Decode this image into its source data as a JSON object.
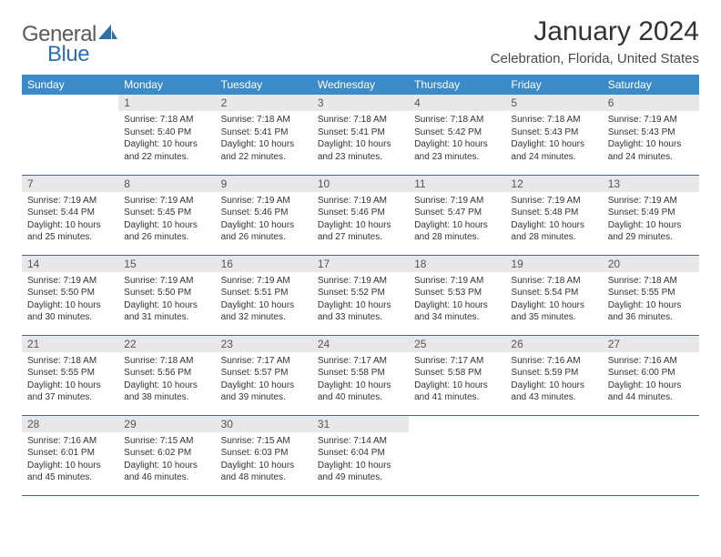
{
  "logo": {
    "part1": "General",
    "part2": "Blue"
  },
  "title": "January 2024",
  "location": "Celebration, Florida, United States",
  "colors": {
    "header_bg": "#3b8bc9",
    "header_text": "#ffffff",
    "daynum_bg": "#e8e8e8",
    "daynum_text": "#555555",
    "border": "#2f6fab",
    "body_text": "#333333",
    "logo_gray": "#5a5a5a",
    "logo_blue": "#2f6fab"
  },
  "fonts": {
    "title_size_pt": 22,
    "location_size_pt": 11,
    "weekday_size_pt": 9,
    "daynum_size_pt": 9,
    "body_size_pt": 7.5
  },
  "weekdays": [
    "Sunday",
    "Monday",
    "Tuesday",
    "Wednesday",
    "Thursday",
    "Friday",
    "Saturday"
  ],
  "weeks": [
    [
      null,
      {
        "n": "1",
        "sr": "7:18 AM",
        "ss": "5:40 PM",
        "dl": "10 hours and 22 minutes."
      },
      {
        "n": "2",
        "sr": "7:18 AM",
        "ss": "5:41 PM",
        "dl": "10 hours and 22 minutes."
      },
      {
        "n": "3",
        "sr": "7:18 AM",
        "ss": "5:41 PM",
        "dl": "10 hours and 23 minutes."
      },
      {
        "n": "4",
        "sr": "7:18 AM",
        "ss": "5:42 PM",
        "dl": "10 hours and 23 minutes."
      },
      {
        "n": "5",
        "sr": "7:18 AM",
        "ss": "5:43 PM",
        "dl": "10 hours and 24 minutes."
      },
      {
        "n": "6",
        "sr": "7:19 AM",
        "ss": "5:43 PM",
        "dl": "10 hours and 24 minutes."
      }
    ],
    [
      {
        "n": "7",
        "sr": "7:19 AM",
        "ss": "5:44 PM",
        "dl": "10 hours and 25 minutes."
      },
      {
        "n": "8",
        "sr": "7:19 AM",
        "ss": "5:45 PM",
        "dl": "10 hours and 26 minutes."
      },
      {
        "n": "9",
        "sr": "7:19 AM",
        "ss": "5:46 PM",
        "dl": "10 hours and 26 minutes."
      },
      {
        "n": "10",
        "sr": "7:19 AM",
        "ss": "5:46 PM",
        "dl": "10 hours and 27 minutes."
      },
      {
        "n": "11",
        "sr": "7:19 AM",
        "ss": "5:47 PM",
        "dl": "10 hours and 28 minutes."
      },
      {
        "n": "12",
        "sr": "7:19 AM",
        "ss": "5:48 PM",
        "dl": "10 hours and 28 minutes."
      },
      {
        "n": "13",
        "sr": "7:19 AM",
        "ss": "5:49 PM",
        "dl": "10 hours and 29 minutes."
      }
    ],
    [
      {
        "n": "14",
        "sr": "7:19 AM",
        "ss": "5:50 PM",
        "dl": "10 hours and 30 minutes."
      },
      {
        "n": "15",
        "sr": "7:19 AM",
        "ss": "5:50 PM",
        "dl": "10 hours and 31 minutes."
      },
      {
        "n": "16",
        "sr": "7:19 AM",
        "ss": "5:51 PM",
        "dl": "10 hours and 32 minutes."
      },
      {
        "n": "17",
        "sr": "7:19 AM",
        "ss": "5:52 PM",
        "dl": "10 hours and 33 minutes."
      },
      {
        "n": "18",
        "sr": "7:19 AM",
        "ss": "5:53 PM",
        "dl": "10 hours and 34 minutes."
      },
      {
        "n": "19",
        "sr": "7:18 AM",
        "ss": "5:54 PM",
        "dl": "10 hours and 35 minutes."
      },
      {
        "n": "20",
        "sr": "7:18 AM",
        "ss": "5:55 PM",
        "dl": "10 hours and 36 minutes."
      }
    ],
    [
      {
        "n": "21",
        "sr": "7:18 AM",
        "ss": "5:55 PM",
        "dl": "10 hours and 37 minutes."
      },
      {
        "n": "22",
        "sr": "7:18 AM",
        "ss": "5:56 PM",
        "dl": "10 hours and 38 minutes."
      },
      {
        "n": "23",
        "sr": "7:17 AM",
        "ss": "5:57 PM",
        "dl": "10 hours and 39 minutes."
      },
      {
        "n": "24",
        "sr": "7:17 AM",
        "ss": "5:58 PM",
        "dl": "10 hours and 40 minutes."
      },
      {
        "n": "25",
        "sr": "7:17 AM",
        "ss": "5:58 PM",
        "dl": "10 hours and 41 minutes."
      },
      {
        "n": "26",
        "sr": "7:16 AM",
        "ss": "5:59 PM",
        "dl": "10 hours and 43 minutes."
      },
      {
        "n": "27",
        "sr": "7:16 AM",
        "ss": "6:00 PM",
        "dl": "10 hours and 44 minutes."
      }
    ],
    [
      {
        "n": "28",
        "sr": "7:16 AM",
        "ss": "6:01 PM",
        "dl": "10 hours and 45 minutes."
      },
      {
        "n": "29",
        "sr": "7:15 AM",
        "ss": "6:02 PM",
        "dl": "10 hours and 46 minutes."
      },
      {
        "n": "30",
        "sr": "7:15 AM",
        "ss": "6:03 PM",
        "dl": "10 hours and 48 minutes."
      },
      {
        "n": "31",
        "sr": "7:14 AM",
        "ss": "6:04 PM",
        "dl": "10 hours and 49 minutes."
      },
      null,
      null,
      null
    ]
  ],
  "labels": {
    "sunrise": "Sunrise:",
    "sunset": "Sunset:",
    "daylight": "Daylight:"
  }
}
